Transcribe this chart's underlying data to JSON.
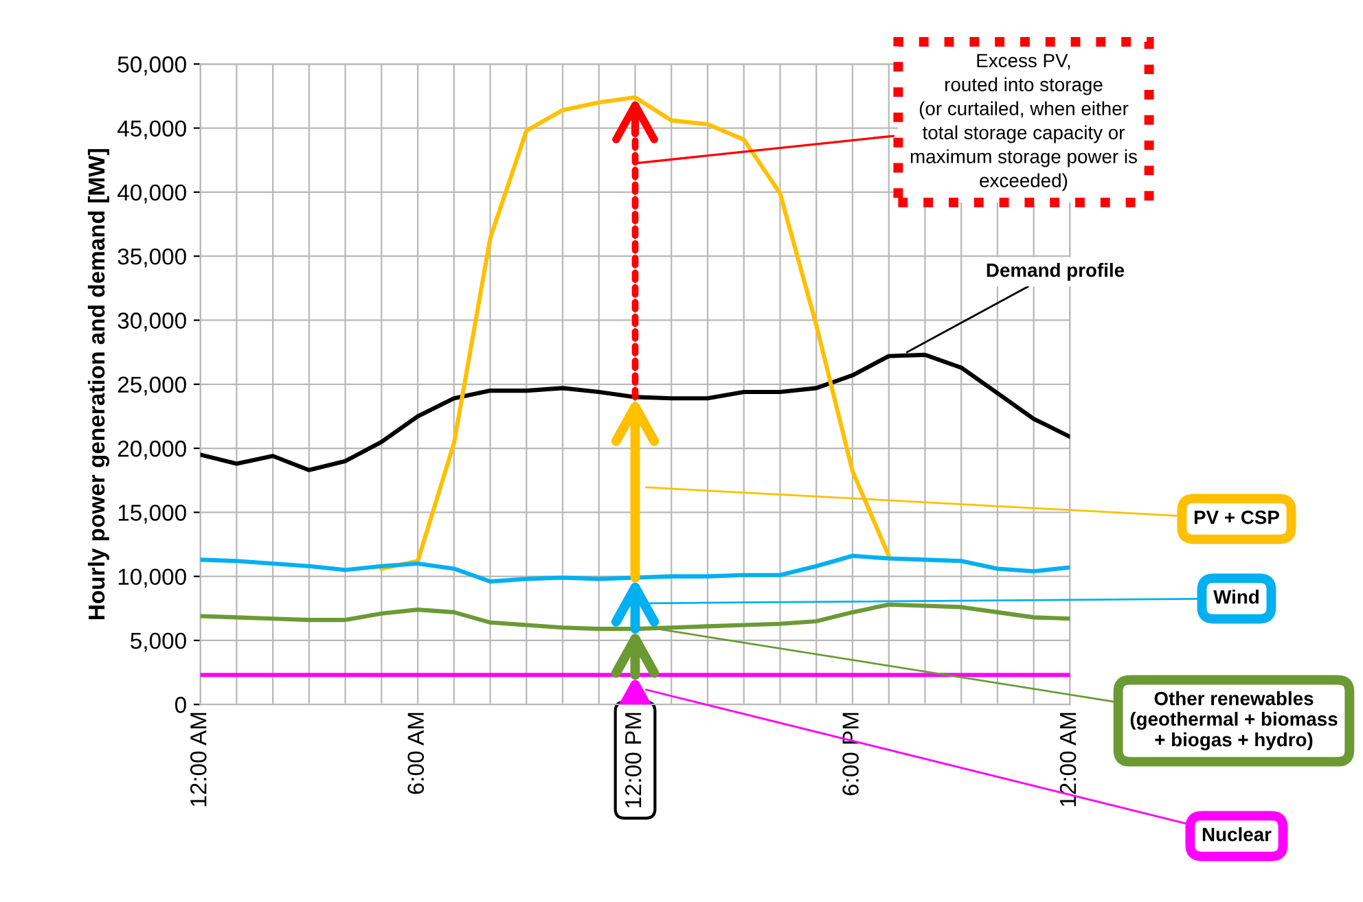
{
  "chart_data": {
    "type": "line",
    "ylabel": "Hourly power generation and demand [MW]",
    "x": [
      0,
      1,
      2,
      3,
      4,
      5,
      6,
      7,
      8,
      9,
      10,
      11,
      12,
      13,
      14,
      15,
      16,
      17,
      18,
      19,
      20,
      21,
      22,
      23,
      24
    ],
    "xlim": [
      0,
      24
    ],
    "xticks": [
      {
        "value": 0,
        "label": "12:00 AM"
      },
      {
        "value": 1,
        "label": null
      },
      {
        "value": 2,
        "label": null
      },
      {
        "value": 3,
        "label": null
      },
      {
        "value": 4,
        "label": null
      },
      {
        "value": 5,
        "label": null
      },
      {
        "value": 6,
        "label": "6:00 AM"
      },
      {
        "value": 7,
        "label": null
      },
      {
        "value": 8,
        "label": null
      },
      {
        "value": 9,
        "label": null
      },
      {
        "value": 10,
        "label": null
      },
      {
        "value": 11,
        "label": null
      },
      {
        "value": 12,
        "label": "12:00 PM"
      },
      {
        "value": 13,
        "label": null
      },
      {
        "value": 14,
        "label": null
      },
      {
        "value": 15,
        "label": null
      },
      {
        "value": 16,
        "label": null
      },
      {
        "value": 17,
        "label": null
      },
      {
        "value": 18,
        "label": "6:00 PM"
      },
      {
        "value": 19,
        "label": null
      },
      {
        "value": 20,
        "label": null
      },
      {
        "value": 21,
        "label": null
      },
      {
        "value": 22,
        "label": null
      },
      {
        "value": 23,
        "label": null
      },
      {
        "value": 24,
        "label": "12:00 AM"
      }
    ],
    "ylim": [
      0,
      50000
    ],
    "yticks": [
      0,
      {
        "value": 5000,
        "label": "5,000"
      },
      {
        "value": 10000,
        "label": "10,000"
      },
      {
        "value": 15000,
        "label": "15,000"
      },
      {
        "value": 20000,
        "label": "20,000"
      },
      {
        "value": 25000,
        "label": "25,000"
      },
      {
        "value": 30000,
        "label": "30,000"
      },
      {
        "value": 35000,
        "label": "35,000"
      },
      {
        "value": 40000,
        "label": "40,000"
      },
      {
        "value": 45000,
        "label": "45,000"
      },
      {
        "value": 50000,
        "label": "50,000"
      }
    ],
    "grid": true,
    "legend": false,
    "marker": "none",
    "line_style": "solid",
    "series": [
      {
        "name": "Demand profile",
        "color": "#000000",
        "values": [
          19500,
          18800,
          19400,
          18300,
          19000,
          20500,
          22500,
          23900,
          24500,
          24500,
          24700,
          24400,
          24000,
          23900,
          23900,
          24400,
          24400,
          24700,
          25700,
          27200,
          27300,
          26300,
          24300,
          22300,
          20900
        ]
      },
      {
        "name": "PV + CSP",
        "color": "#ffc000",
        "values": [
          null,
          null,
          null,
          null,
          null,
          10600,
          11200,
          20400,
          36400,
          44800,
          46400,
          47000,
          47400,
          45600,
          45300,
          44100,
          39900,
          29600,
          18200,
          11600,
          null,
          null,
          null,
          null,
          null
        ]
      },
      {
        "name": "Wind",
        "color": "#00b0f0",
        "values": [
          11300,
          11200,
          11000,
          10800,
          10500,
          10800,
          11000,
          10600,
          9600,
          9800,
          9900,
          9800,
          9900,
          10000,
          10000,
          10100,
          10100,
          10800,
          11600,
          11400,
          11300,
          11200,
          10600,
          10400,
          10700
        ]
      },
      {
        "name": "Other renewables\n(geothermal + biomass\n+ biogas + hydro)",
        "color": "#6b9a35",
        "values": [
          6900,
          6800,
          6700,
          6600,
          6600,
          7100,
          7400,
          7200,
          6400,
          6200,
          6000,
          5900,
          5900,
          6000,
          6100,
          6200,
          6300,
          6500,
          7200,
          7800,
          7700,
          7600,
          7200,
          6800,
          6700
        ]
      },
      {
        "name": "Nuclear",
        "color": "#ff00ff",
        "values": [
          2300,
          2300,
          2300,
          2300,
          2300,
          2300,
          2300,
          2300,
          2300,
          2300,
          2300,
          2300,
          2300,
          2300,
          2300,
          2300,
          2300,
          2300,
          2300,
          2300,
          2300,
          2300,
          2300,
          2300,
          2300
        ]
      }
    ],
    "annotations": [
      "Excess PV,\nrouted into storage\n(or curtailed, when either\ntotal storage capacity or\nmaximum storage power is\nexceeded)"
    ]
  }
}
